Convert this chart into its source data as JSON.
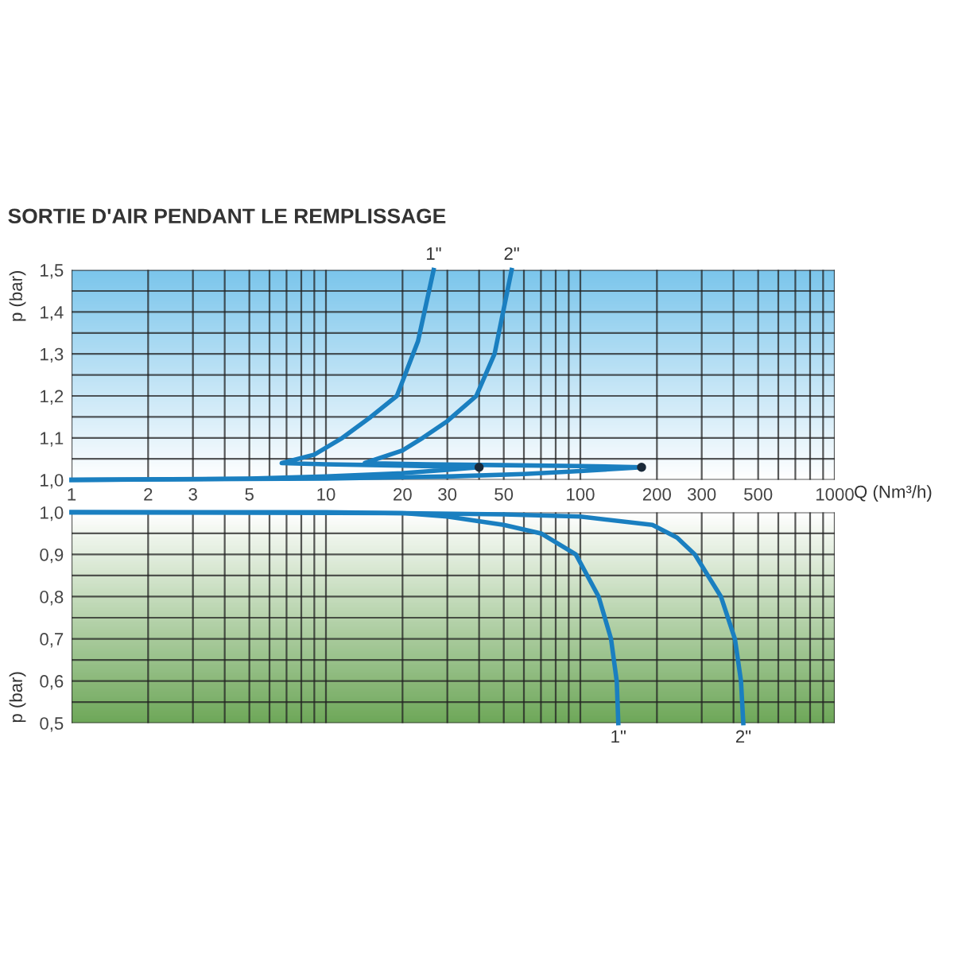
{
  "chart_data": [
    {
      "type": "line",
      "title": "SORTIE D'AIR PENDANT LE REMPLISSAGE",
      "xlabel": "Q (Nm³/h)",
      "ylabel": "p (bar)",
      "log": "x",
      "grid": true,
      "line_style": "solid",
      "marker": "none",
      "xlim": [
        1,
        1000
      ],
      "xticks": [
        1,
        2,
        3,
        {
          "value": 4,
          "label": null
        },
        5,
        {
          "value": 6,
          "label": null
        },
        {
          "value": 7,
          "label": null
        },
        {
          "value": 8,
          "label": null
        },
        {
          "value": 9,
          "label": null
        },
        10,
        20,
        30,
        {
          "value": 40,
          "label": null
        },
        50,
        {
          "value": 60,
          "label": null
        },
        {
          "value": 70,
          "label": null
        },
        {
          "value": 80,
          "label": null
        },
        {
          "value": 90,
          "label": null
        },
        100,
        200,
        300,
        {
          "value": 400,
          "label": null
        },
        500,
        {
          "value": 600,
          "label": null
        },
        {
          "value": 700,
          "label": null
        },
        {
          "value": 800,
          "label": null
        },
        {
          "value": 900,
          "label": null
        },
        1000
      ],
      "ylim": [
        1.0,
        1.5
      ],
      "yticks": [
        {
          "value": 1.0,
          "label": "1,0"
        },
        {
          "value": 1.05,
          "label": null
        },
        {
          "value": 1.1,
          "label": "1,1"
        },
        {
          "value": 1.15,
          "label": null
        },
        {
          "value": 1.2,
          "label": "1,2"
        },
        {
          "value": 1.25,
          "label": null
        },
        {
          "value": 1.3,
          "label": "1,3"
        },
        {
          "value": 1.35,
          "label": null
        },
        {
          "value": 1.4,
          "label": "1,4"
        },
        {
          "value": 1.45,
          "label": null
        },
        {
          "value": 1.5,
          "label": "1,5"
        }
      ],
      "series": [
        {
          "name": "1\"",
          "color": "#1a7fc0",
          "x": [
            1,
            5,
            10,
            20,
            30,
            40,
            20,
            10,
            6.7,
            9,
            11.6,
            15,
            19,
            23,
            26.5
          ],
          "values": [
            1.0,
            1.003,
            1.008,
            1.016,
            1.024,
            1.03,
            1.034,
            1.037,
            1.04,
            1.06,
            1.1,
            1.15,
            1.2,
            1.33,
            1.5
          ]
        },
        {
          "name": "2\"",
          "color": "#1a7fc0",
          "x": [
            1,
            10,
            30,
            60,
            100,
            174,
            100,
            50,
            25,
            14.2,
            20,
            24,
            30,
            39,
            46,
            53.7
          ],
          "values": [
            1.0,
            1.003,
            1.008,
            1.014,
            1.021,
            1.03,
            1.033,
            1.035,
            1.037,
            1.04,
            1.07,
            1.1,
            1.14,
            1.2,
            1.3,
            1.5
          ]
        },
        {
          "type": "scatter",
          "marker": "circle",
          "color": "#1a2a3a",
          "x": [
            40,
            174
          ],
          "values": [
            1.03,
            1.03
          ]
        }
      ]
    },
    {
      "type": "line",
      "ylabel": "p (bar)",
      "log": "x",
      "grid": true,
      "line_style": "solid",
      "marker": "none",
      "tick_labels": "y",
      "xlim": [
        1,
        1000
      ],
      "xticks": [
        1,
        2,
        3,
        4,
        5,
        6,
        7,
        8,
        9,
        10,
        20,
        30,
        40,
        50,
        60,
        70,
        80,
        90,
        100,
        200,
        300,
        400,
        500,
        600,
        700,
        800,
        900,
        1000
      ],
      "ylim": [
        0.5,
        1.0
      ],
      "yticks": [
        {
          "value": 0.5,
          "label": "0,5"
        },
        {
          "value": 0.55,
          "label": null
        },
        {
          "value": 0.6,
          "label": "0,6"
        },
        {
          "value": 0.65,
          "label": null
        },
        {
          "value": 0.7,
          "label": "0,7"
        },
        {
          "value": 0.75,
          "label": null
        },
        {
          "value": 0.8,
          "label": "0,8"
        },
        {
          "value": 0.85,
          "label": null
        },
        {
          "value": 0.9,
          "label": "0,9"
        },
        {
          "value": 0.95,
          "label": null
        },
        {
          "value": 1.0,
          "label": "1,0"
        }
      ],
      "series": [
        {
          "name": "1\"",
          "color": "#1a7fc0",
          "x": [
            1,
            10,
            20,
            30,
            50,
            70,
            96,
            118,
            132,
            139,
            141
          ],
          "values": [
            1.0,
            1.0,
            0.998,
            0.99,
            0.97,
            0.95,
            0.9,
            0.8,
            0.7,
            0.6,
            0.5
          ]
        },
        {
          "name": "2\"",
          "color": "#1a7fc0",
          "x": [
            1,
            20,
            50,
            100,
            192,
            240,
            282,
            357,
            405,
            428,
            437
          ],
          "values": [
            1.0,
            0.998,
            0.995,
            0.99,
            0.97,
            0.94,
            0.9,
            0.8,
            0.7,
            0.6,
            0.5
          ]
        }
      ]
    }
  ]
}
